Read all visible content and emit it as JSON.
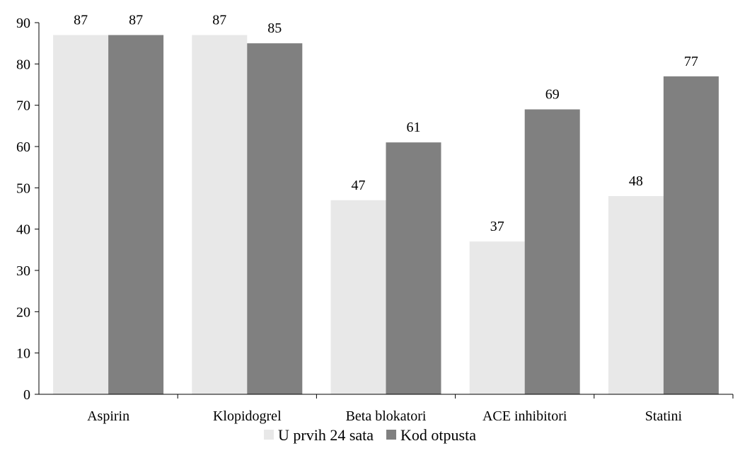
{
  "chart_data": {
    "type": "bar",
    "categories": [
      "Aspirin",
      "Klopidogrel",
      "Beta blokatori",
      "ACE inhibitori",
      "Statini"
    ],
    "series": [
      {
        "name": "U prvih 24 sata",
        "values": [
          87,
          87,
          47,
          37,
          48
        ],
        "color": "#e8e8e8"
      },
      {
        "name": "Kod otpusta",
        "values": [
          87,
          85,
          61,
          69,
          77
        ],
        "color": "#808080"
      }
    ],
    "ylim": [
      0,
      90
    ],
    "yticks": [
      0,
      10,
      20,
      30,
      40,
      50,
      60,
      70,
      80,
      90
    ],
    "grid": false,
    "legend_position": "bottom",
    "data_labels": true,
    "axis_color": "#000000"
  }
}
